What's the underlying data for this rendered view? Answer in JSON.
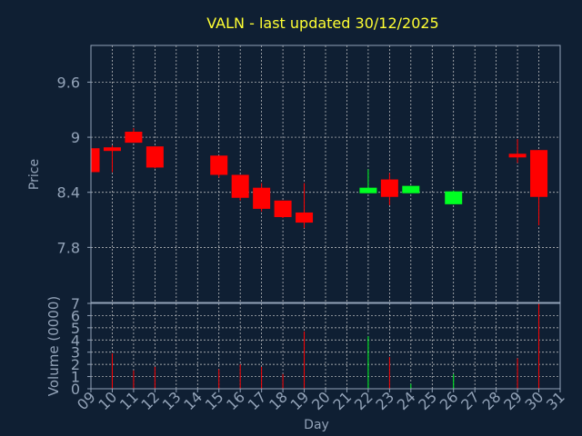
{
  "chart_data": {
    "type": "candlestick",
    "title": "VALN - last updated 30/12/2025",
    "xlabel": "Day",
    "ylabel": "Price",
    "volume_label": "Volume (0000)",
    "x_ticks": [
      "09",
      "10",
      "11",
      "12",
      "13",
      "14",
      "15",
      "16",
      "17",
      "18",
      "19",
      "20",
      "21",
      "22",
      "23",
      "24",
      "25",
      "26",
      "27",
      "28",
      "29",
      "30",
      "31"
    ],
    "price_ticks": [
      7.8,
      8.4,
      9,
      9.6
    ],
    "price_tick_labels": [
      "7.8",
      "8.4",
      "9",
      "9.6"
    ],
    "volume_ticks": [
      0,
      1,
      2,
      3,
      4,
      5,
      6,
      7
    ],
    "price_ylim": [
      7.2,
      10.0
    ],
    "volume_ylim": [
      0,
      7
    ],
    "grid": true,
    "colors": {
      "up": "#00ff22",
      "down": "#ff0000",
      "background": "#0f1f33",
      "plot_border": "#93a3b8",
      "title": "#ffff33",
      "grid": "#d0d0d0"
    },
    "candles": [
      {
        "day": "09",
        "open": 8.88,
        "high": 8.88,
        "low": 8.62,
        "close": 8.62,
        "volume": 0
      },
      {
        "day": "10",
        "open": 8.89,
        "high": 8.91,
        "low": 8.62,
        "close": 8.87,
        "volume": 2.9
      },
      {
        "day": "11",
        "open": 9.06,
        "high": 9.1,
        "low": 8.94,
        "close": 8.94,
        "volume": 1.5
      },
      {
        "day": "12",
        "open": 8.9,
        "high": 8.9,
        "low": 8.66,
        "close": 8.67,
        "volume": 1.8
      },
      {
        "day": "15",
        "open": 8.8,
        "high": 8.8,
        "low": 8.56,
        "close": 8.59,
        "volume": 1.6
      },
      {
        "day": "16",
        "open": 8.59,
        "high": 8.59,
        "low": 8.31,
        "close": 8.34,
        "volume": 2.0
      },
      {
        "day": "17",
        "open": 8.45,
        "high": 8.5,
        "low": 8.19,
        "close": 8.22,
        "volume": 1.8
      },
      {
        "day": "18",
        "open": 8.31,
        "high": 8.31,
        "low": 8.12,
        "close": 8.13,
        "volume": 1.2
      },
      {
        "day": "19",
        "open": 8.18,
        "high": 8.5,
        "low": 8.01,
        "close": 8.07,
        "volume": 4.7
      },
      {
        "day": "22",
        "open": 8.39,
        "high": 8.65,
        "low": 8.39,
        "close": 8.45,
        "volume": 4.3
      },
      {
        "day": "23",
        "open": 8.54,
        "high": 8.61,
        "low": 8.26,
        "close": 8.35,
        "volume": 2.6
      },
      {
        "day": "24",
        "open": 8.39,
        "high": 8.47,
        "low": 8.39,
        "close": 8.47,
        "volume": 0.4
      },
      {
        "day": "26",
        "open": 8.27,
        "high": 8.42,
        "low": 8.27,
        "close": 8.41,
        "volume": 1.2
      },
      {
        "day": "29",
        "open": 8.82,
        "high": 8.98,
        "low": 8.72,
        "close": 8.78,
        "volume": 2.5
      },
      {
        "day": "30",
        "open": 8.86,
        "high": 8.86,
        "low": 8.04,
        "close": 8.35,
        "volume": 7.0
      }
    ]
  }
}
